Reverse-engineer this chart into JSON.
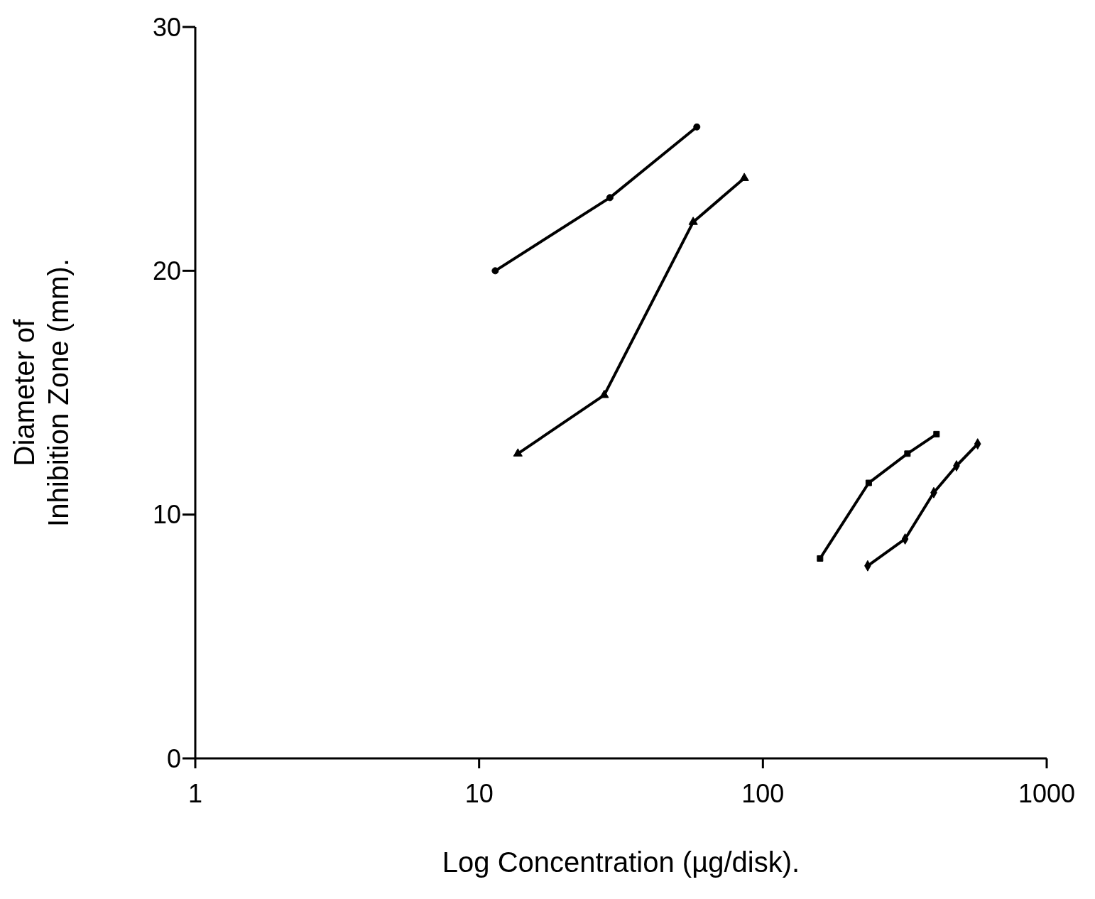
{
  "chart_data": {
    "type": "line",
    "xlabel": "Log Concentration (µg/disk).",
    "ylabel": "Diameter of\nInhibition Zone (mm).",
    "log": "x",
    "xlim": [
      1,
      1000
    ],
    "xticks": [
      1,
      10,
      100,
      1000
    ],
    "ylim": [
      0,
      30
    ],
    "yticks": [
      0,
      10,
      20,
      30
    ],
    "grid": false,
    "legend": false,
    "series": [
      {
        "color": "#000000",
        "marker": "circle",
        "x": [
          11.4,
          28.9,
          58.5
        ],
        "values": [
          20,
          23,
          25.9
        ]
      },
      {
        "color": "#000000",
        "marker": "triangle",
        "x": [
          13.7,
          27.6,
          56.8,
          86
        ],
        "values": [
          12.5,
          14.9,
          22,
          23.8
        ]
      },
      {
        "color": "#000000",
        "marker": "square",
        "x": [
          159,
          236,
          323,
          409
        ],
        "values": [
          8.2,
          11.3,
          12.5,
          13.3
        ]
      },
      {
        "color": "#000000",
        "marker": "diamond",
        "x": [
          234,
          317,
          400,
          481,
          571
        ],
        "values": [
          7.9,
          9,
          10.9,
          12,
          12.9
        ]
      }
    ]
  }
}
